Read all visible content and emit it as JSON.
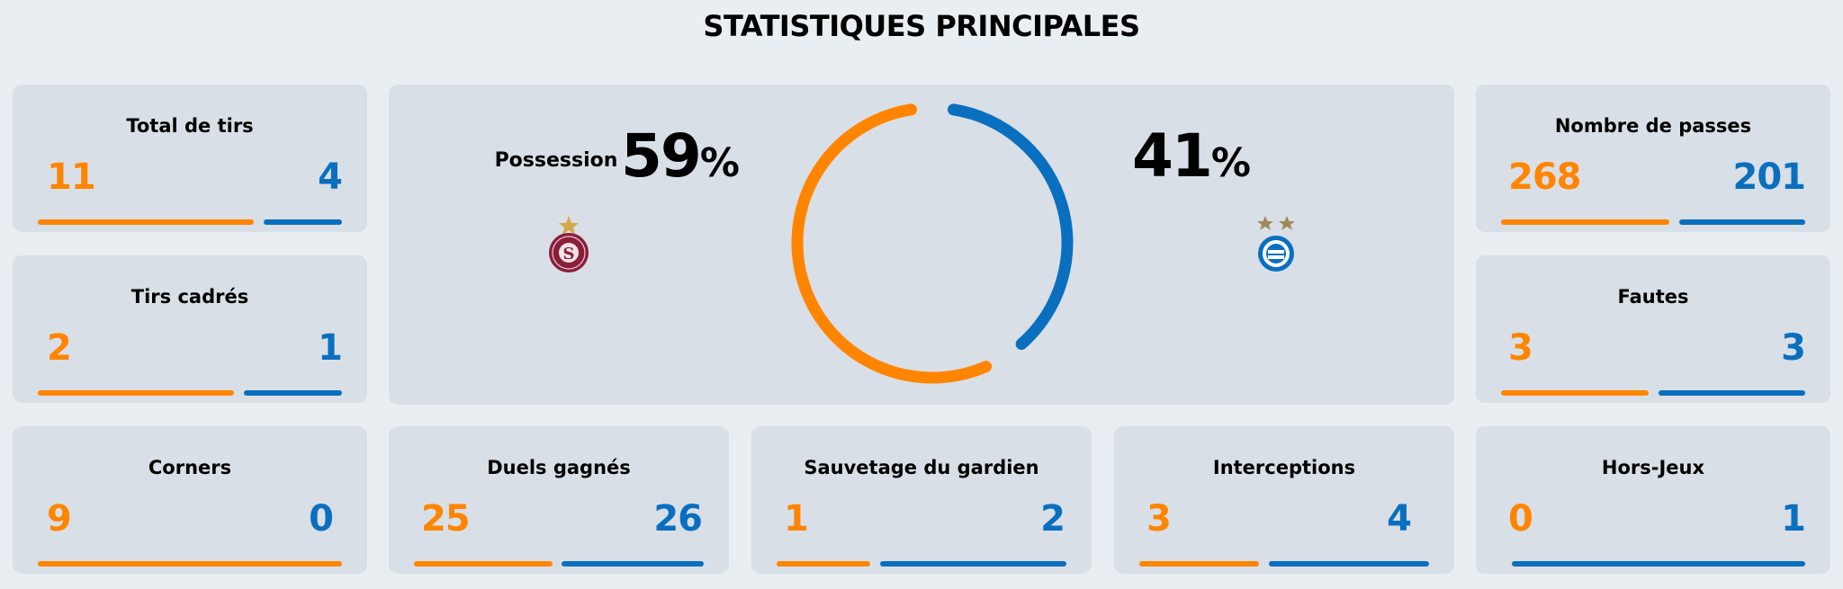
{
  "page": {
    "title": "STATISTIQUES PRINCIPALES"
  },
  "colors": {
    "home": "#ff8500",
    "away": "#0a6fbf"
  },
  "teams": {
    "home": {
      "logo_icon": "servette-fc-crest-icon",
      "stars": 1
    },
    "away": {
      "logo_icon": "grasshopper-club-crest-icon",
      "stars": 2
    }
  },
  "possession": {
    "label": "Possession",
    "home_value": "59",
    "away_value": "41",
    "unit": "%",
    "home_fraction": 0.59,
    "away_fraction": 0.41
  },
  "stats": {
    "total_shots": {
      "label": "Total de tirs",
      "home": "11",
      "away": "4",
      "home_share": 0.733,
      "away_share": 0.267
    },
    "shots_on_target": {
      "label": "Tirs cadrés",
      "home": "2",
      "away": "1",
      "home_share": 0.667,
      "away_share": 0.333
    },
    "corners": {
      "label": "Corners",
      "home": "9",
      "away": "0",
      "home_share": 1.0,
      "away_share": 0.0
    },
    "duels_won": {
      "label": "Duels gagnés",
      "home": "25",
      "away": "26",
      "home_share": 0.49,
      "away_share": 0.51
    },
    "goalkeeper_saves": {
      "label": "Sauvetage du gardien",
      "home": "1",
      "away": "2",
      "home_share": 0.333,
      "away_share": 0.667
    },
    "interceptions": {
      "label": "Interceptions",
      "home": "3",
      "away": "4",
      "home_share": 0.429,
      "away_share": 0.571
    },
    "offsides": {
      "label": "Hors-Jeux",
      "home": "0",
      "away": "1",
      "home_share": 0.0,
      "away_share": 1.0
    },
    "passes": {
      "label": "Nombre de passes",
      "home": "268",
      "away": "201",
      "home_share": 0.571,
      "away_share": 0.429
    },
    "fouls": {
      "label": "Fautes",
      "home": "3",
      "away": "3",
      "home_share": 0.5,
      "away_share": 0.5
    }
  }
}
